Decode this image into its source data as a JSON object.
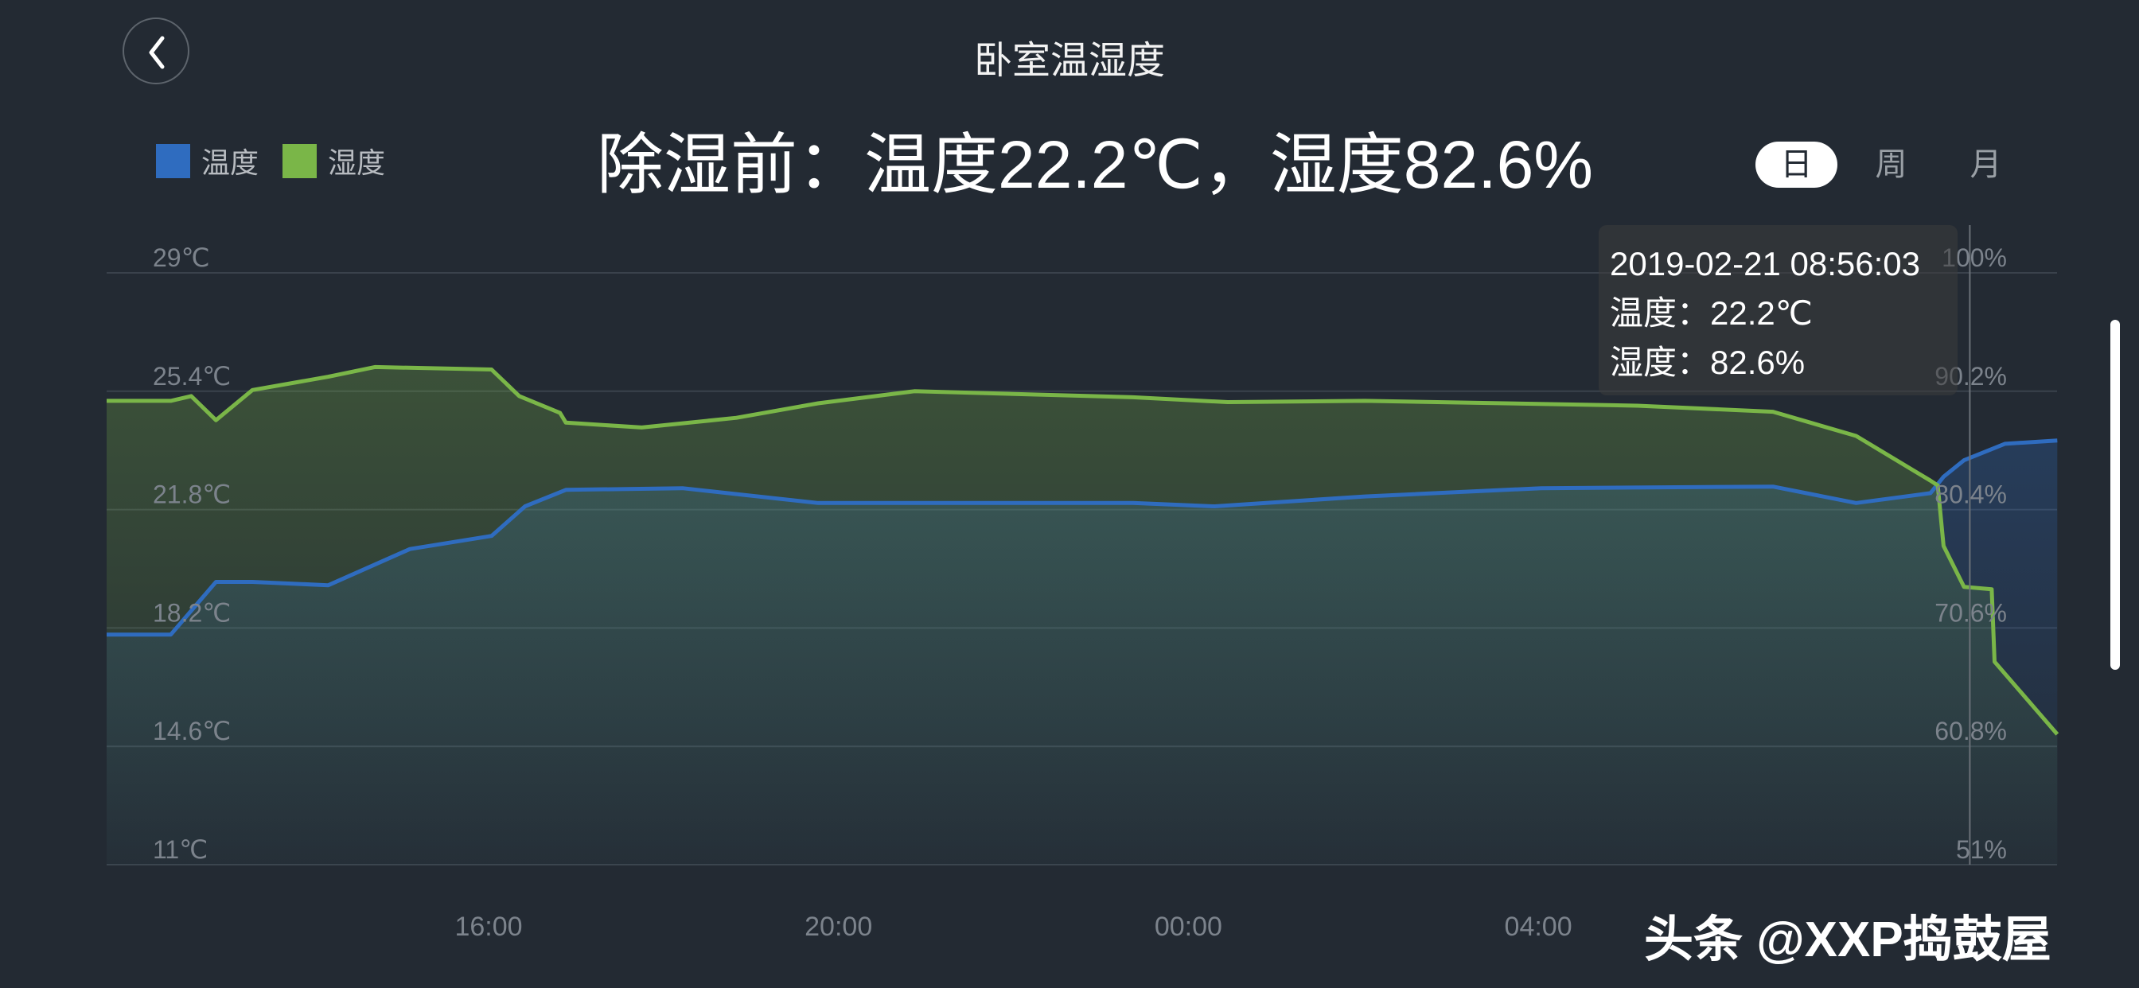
{
  "header": {
    "title": "卧室温湿度",
    "back_icon": "chevron-left-icon"
  },
  "headline": "除湿前：温度22.2℃，湿度82.6%",
  "tabs": [
    {
      "label": "日",
      "active": true
    },
    {
      "label": "周",
      "active": false
    },
    {
      "label": "月",
      "active": false
    }
  ],
  "tooltip": {
    "time": "2019-02-21 08:56:03",
    "temperature": "温度：22.2℃",
    "humidity": "湿度：82.6%"
  },
  "watermark": "头条 @XXP捣鼓屋",
  "chart_data": {
    "type": "area",
    "legend_position": "top-left",
    "grid": true,
    "x_ticks": [
      "16:00",
      "20:00",
      "00:00",
      "04:00"
    ],
    "y_left": {
      "ticks": [
        "29℃",
        "25.4℃",
        "21.8℃",
        "18.2℃",
        "14.6℃",
        "11℃"
      ],
      "range": [
        11,
        29
      ],
      "unit": "℃"
    },
    "y_right": {
      "ticks": [
        "100%",
        "90.2%",
        "80.4%",
        "70.6%",
        "60.8%",
        "51%"
      ],
      "range": [
        51,
        100
      ],
      "unit": "%"
    },
    "x_range": [
      "11:38",
      "09:56"
    ],
    "crosshair": "08:56",
    "series": [
      {
        "name": "温度",
        "color": "#2f6cbf",
        "axis": "left",
        "points": [
          [
            "11:38",
            18.0
          ],
          [
            "12:22",
            18.0
          ],
          [
            "12:53",
            19.6
          ],
          [
            "13:18",
            19.6
          ],
          [
            "14:10",
            19.5
          ],
          [
            "15:06",
            20.6
          ],
          [
            "16:02",
            21.0
          ],
          [
            "16:25",
            21.9
          ],
          [
            "16:53",
            22.4
          ],
          [
            "18:13",
            22.45
          ],
          [
            "19:46",
            22.0
          ],
          [
            "23:22",
            22.0
          ],
          [
            "00:18",
            21.9
          ],
          [
            "02:01",
            22.2
          ],
          [
            "04:02",
            22.45
          ],
          [
            "06:41",
            22.5
          ],
          [
            "07:38",
            22.0
          ],
          [
            "08:29",
            22.3
          ],
          [
            "08:38",
            22.8
          ],
          [
            "08:52",
            23.3
          ],
          [
            "09:20",
            23.8
          ],
          [
            "09:56",
            23.9
          ]
        ]
      },
      {
        "name": "湿度",
        "color": "#7ab648",
        "axis": "right",
        "points": [
          [
            "11:38",
            89.4
          ],
          [
            "12:22",
            89.4
          ],
          [
            "12:36",
            89.8
          ],
          [
            "12:53",
            87.8
          ],
          [
            "13:18",
            90.3
          ],
          [
            "14:10",
            91.4
          ],
          [
            "14:42",
            92.2
          ],
          [
            "16:02",
            92.0
          ],
          [
            "16:21",
            89.8
          ],
          [
            "16:49",
            88.4
          ],
          [
            "16:53",
            87.6
          ],
          [
            "17:45",
            87.2
          ],
          [
            "18:50",
            88.0
          ],
          [
            "19:46",
            89.2
          ],
          [
            "20:52",
            90.2
          ],
          [
            "23:22",
            89.7
          ],
          [
            "00:27",
            89.3
          ],
          [
            "02:01",
            89.4
          ],
          [
            "05:08",
            89.0
          ],
          [
            "06:41",
            88.5
          ],
          [
            "07:38",
            86.5
          ],
          [
            "08:29",
            82.8
          ],
          [
            "08:34",
            82.4
          ],
          [
            "08:38",
            77.4
          ],
          [
            "08:52",
            74.0
          ],
          [
            "09:11",
            73.8
          ],
          [
            "09:13",
            67.8
          ],
          [
            "09:56",
            61.8
          ]
        ]
      }
    ]
  }
}
